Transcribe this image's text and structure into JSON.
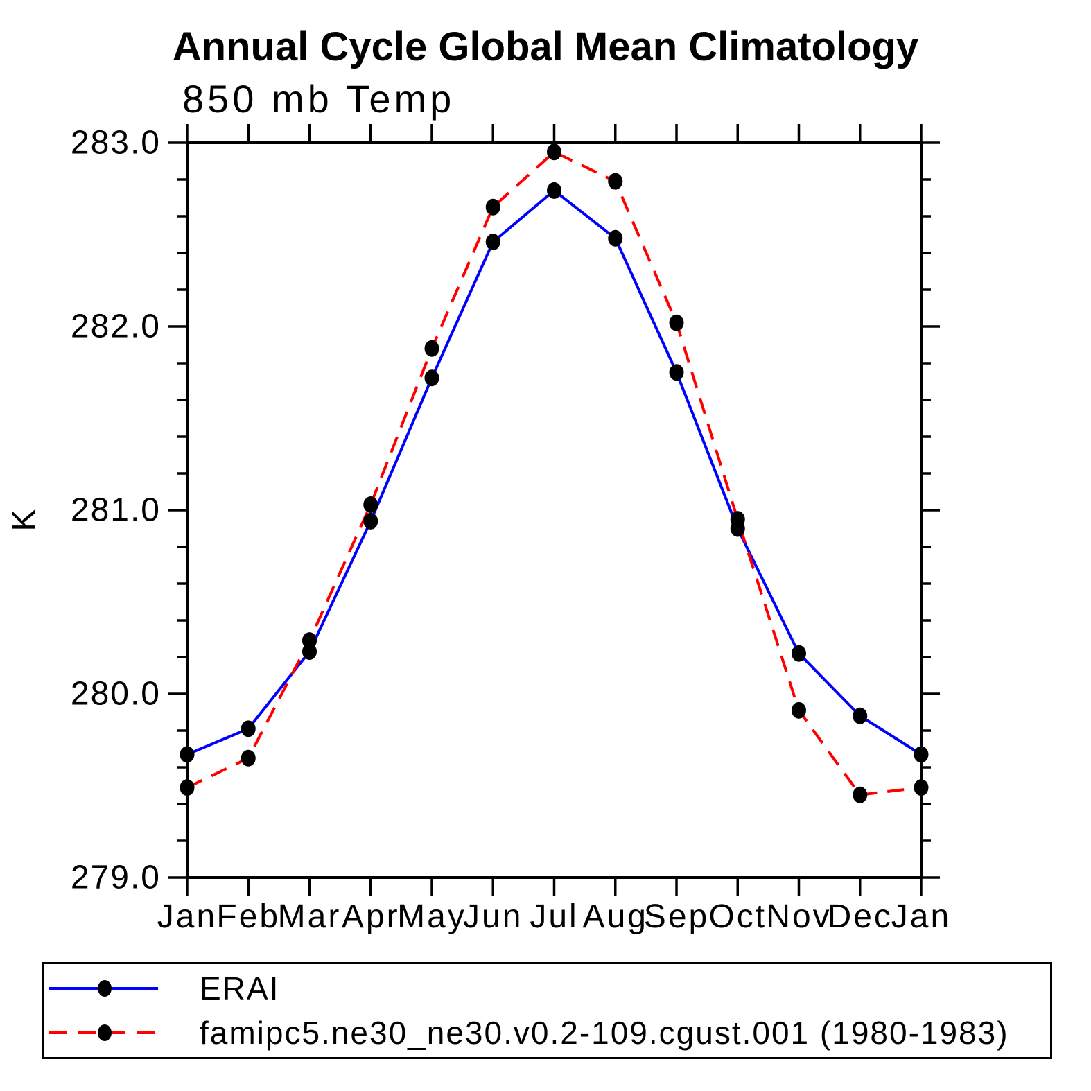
{
  "page": {
    "background": "#ffffff"
  },
  "chart": {
    "title": "Annual Cycle Global Mean Climatology",
    "subtitle": "850 mb Temp",
    "ylabel": "K"
  },
  "chart_data": {
    "type": "line",
    "title": "Annual Cycle Global Mean Climatology",
    "subtitle": "850 mb Temp",
    "xlabel": "",
    "ylabel": "K",
    "categories": [
      "Jan",
      "Feb",
      "Mar",
      "Apr",
      "May",
      "Jun",
      "Jul",
      "Aug",
      "Sep",
      "Oct",
      "Nov",
      "Dec",
      "Jan"
    ],
    "ylim": [
      279.0,
      283.0
    ],
    "y_major_step": 1.0,
    "y_minor_step": 0.2,
    "y_tick_labels": [
      "279.0",
      "280.0",
      "281.0",
      "282.0",
      "283.0"
    ],
    "grid": false,
    "legend_position": "bottom-left-box",
    "marker": "filled-black-dot",
    "series": [
      {
        "name": "ERAI",
        "color": "#0000ff",
        "style": "solid",
        "values": [
          279.67,
          279.81,
          280.23,
          280.94,
          281.72,
          282.46,
          282.74,
          282.48,
          281.75,
          280.9,
          280.22,
          279.88,
          279.67
        ]
      },
      {
        "name": "famipc5.ne30_ne30.v0.2-109.cgust.001 (1980-1983)",
        "color": "#ff0000",
        "style": "dashed",
        "values": [
          279.49,
          279.65,
          280.29,
          281.03,
          281.88,
          282.65,
          282.95,
          282.79,
          282.02,
          280.95,
          279.91,
          279.45,
          279.49
        ]
      }
    ]
  }
}
